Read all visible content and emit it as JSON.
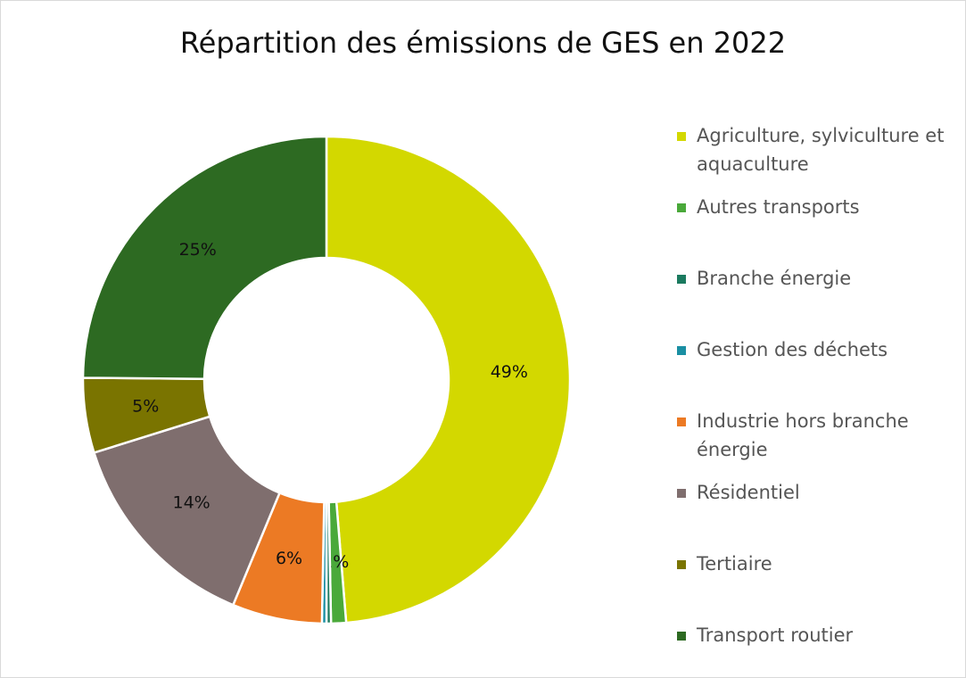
{
  "chart_data": {
    "type": "pie",
    "title": "Répartition des émissions de GES en 2022",
    "categories": [
      "Agriculture, sylviculture et aquaculture",
      "Autres transports",
      "Branche énergie",
      "Gestion des déchets",
      "Industrie hors branche énergie",
      "Résidentiel",
      "Tertiaire",
      "Transport routier"
    ],
    "values": [
      49,
      1,
      0.3,
      0.3,
      6,
      14,
      5,
      25
    ],
    "value_labels": [
      "49%",
      "1%",
      null,
      null,
      "6%",
      "14%",
      "5%",
      "25%"
    ],
    "colors": [
      "#d3d800",
      "#4aa93a",
      "#1b7a5f",
      "#1a8fa3",
      "#ec7a24",
      "#7f6e6e",
      "#7a7400",
      "#2d6a22"
    ],
    "legend": "right"
  }
}
